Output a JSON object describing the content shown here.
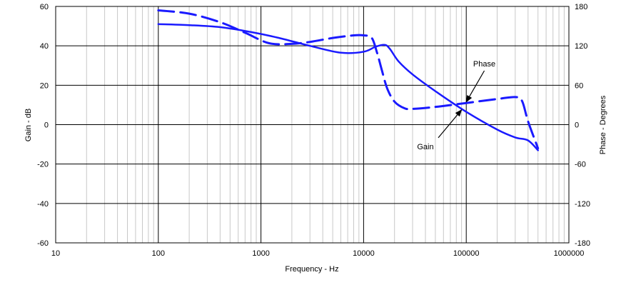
{
  "chart_data": {
    "type": "line",
    "x_scale": "log",
    "xlim": [
      10,
      1000000
    ],
    "x_ticks": [
      10,
      100,
      1000,
      10000,
      100000,
      1000000
    ],
    "x_tick_labels": [
      "10",
      "100",
      "1000",
      "10000",
      "100000",
      "1000000"
    ],
    "ylim_left": [
      -60,
      60
    ],
    "y_left_ticks": [
      -60,
      -40,
      -20,
      0,
      20,
      40,
      60
    ],
    "y_left_tick_labels": [
      "-60",
      "-40",
      "-20",
      "0",
      "20",
      "40",
      "60"
    ],
    "ylim_right": [
      -180,
      180
    ],
    "y_right_ticks": [
      -180,
      -120,
      -60,
      0,
      60,
      120,
      180
    ],
    "y_right_tick_labels": [
      "-180",
      "-120",
      "-60",
      "0",
      "60",
      "120",
      "180"
    ],
    "xlabel": "Frequency - Hz",
    "ylabel_left": "Gain - dB",
    "ylabel_right": "Phase - Degrees",
    "grid": true,
    "series": [
      {
        "name": "Gain",
        "axis": "left",
        "style": "solid",
        "color": "#1a1aff",
        "x": [
          100,
          200,
          400,
          800,
          1500,
          3000,
          6000,
          10000,
          13000,
          16000,
          18000,
          22000,
          30000,
          50000,
          100000,
          200000,
          300000,
          400000,
          500000
        ],
        "y": [
          51,
          50.5,
          49.5,
          47,
          44,
          40,
          36.5,
          37,
          39.5,
          40.5,
          38.5,
          32,
          25.5,
          17,
          6.5,
          -2.5,
          -6.5,
          -8,
          -13
        ]
      },
      {
        "name": "Phase",
        "axis": "right",
        "style": "dashed",
        "color": "#1a1aff",
        "x": [
          100,
          200,
          400,
          700,
          1200,
          2000,
          3000,
          5000,
          8000,
          10000,
          12000,
          13500,
          15000,
          17000,
          20000,
          25000,
          30000,
          50000,
          100000,
          200000,
          300000,
          350000,
          400000,
          500000
        ],
        "y": [
          174,
          169,
          156,
          140,
          124,
          123,
          126,
          132,
          136,
          136,
          132,
          110,
          84,
          55,
          35,
          25,
          24,
          27,
          33,
          39,
          42,
          36,
          5,
          -36
        ]
      }
    ],
    "annotations": [
      {
        "text": "Phase",
        "x": 150000,
        "y_left": 31
      },
      {
        "text": "Gain",
        "x": 40000,
        "y_left": -11
      }
    ]
  },
  "colors": {
    "series": "#1a1aff",
    "grid_minor": "#c8c8c8",
    "grid_major": "#000000"
  }
}
